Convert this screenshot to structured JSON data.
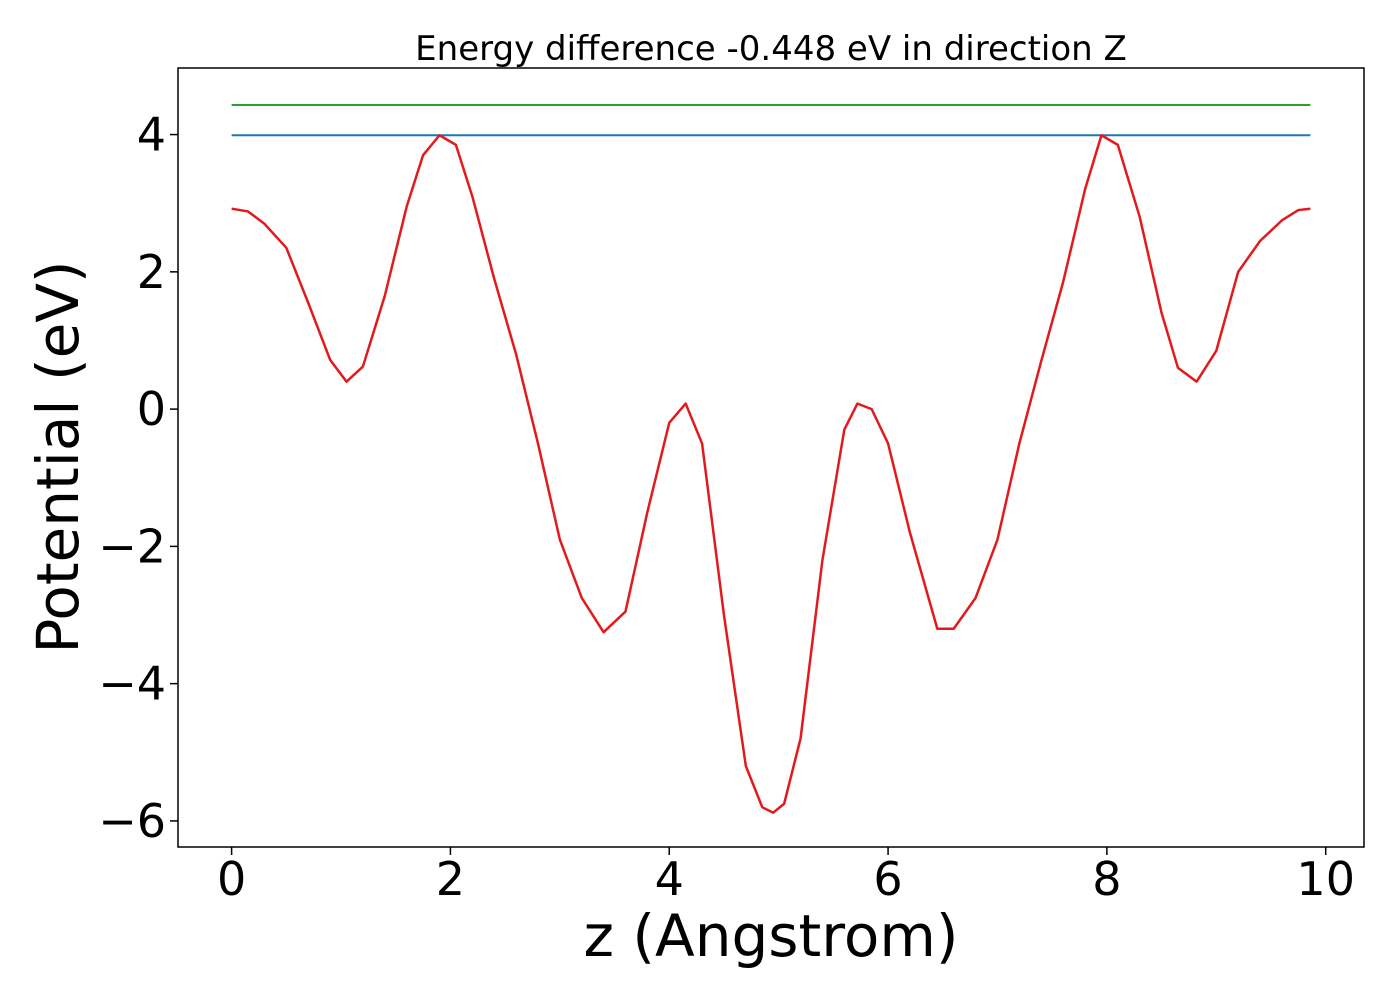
{
  "chart_data": {
    "type": "line",
    "title": "Energy difference -0.448 eV in direction Z",
    "xlabel": "z (Angstrom)",
    "ylabel": "Potential (eV)",
    "xlim": [
      -0.49,
      10.35
    ],
    "ylim": [
      -6.38,
      4.97
    ],
    "x_ticks": [
      0,
      2,
      4,
      6,
      8,
      10
    ],
    "x_tick_labels": [
      "0",
      "2",
      "4",
      "6",
      "8",
      "10"
    ],
    "y_ticks": [
      -6,
      -4,
      -2,
      0,
      2,
      4
    ],
    "y_tick_labels": [
      "−6",
      "−4",
      "−2",
      "0",
      "2",
      "4"
    ],
    "grid": false,
    "series": [
      {
        "color": "#2ca02c",
        "x": [
          0,
          9.86
        ],
        "y": [
          4.43,
          4.43
        ]
      },
      {
        "color": "#1f77b4",
        "x": [
          0,
          9.86
        ],
        "y": [
          3.99,
          3.99
        ]
      },
      {
        "color": "#e31a1c",
        "x": [
          0,
          0.15,
          0.3,
          0.5,
          0.7,
          0.9,
          1.05,
          1.2,
          1.4,
          1.6,
          1.75,
          1.9,
          2.05,
          2.2,
          2.4,
          2.6,
          2.8,
          3.0,
          3.2,
          3.4,
          3.6,
          3.8,
          4.0,
          4.15,
          4.3,
          4.5,
          4.7,
          4.85,
          4.95,
          5.05,
          5.2,
          5.4,
          5.6,
          5.72,
          5.85,
          6.0,
          6.2,
          6.45,
          6.6,
          6.8,
          7.0,
          7.2,
          7.4,
          7.6,
          7.8,
          7.95,
          8.1,
          8.3,
          8.5,
          8.65,
          8.82,
          9.0,
          9.2,
          9.4,
          9.6,
          9.75,
          9.86
        ],
        "y": [
          2.92,
          2.88,
          2.7,
          2.35,
          1.55,
          0.72,
          0.4,
          0.62,
          1.65,
          2.95,
          3.7,
          3.99,
          3.85,
          3.1,
          1.9,
          0.8,
          -0.5,
          -1.9,
          -2.75,
          -3.25,
          -2.95,
          -1.5,
          -0.2,
          0.08,
          -0.5,
          -3.0,
          -5.2,
          -5.8,
          -5.88,
          -5.75,
          -4.8,
          -2.2,
          -0.3,
          0.08,
          0.0,
          -0.5,
          -1.8,
          -3.2,
          -3.2,
          -2.75,
          -1.9,
          -0.5,
          0.7,
          1.85,
          3.2,
          3.99,
          3.85,
          2.8,
          1.4,
          0.6,
          0.4,
          0.85,
          2.0,
          2.45,
          2.75,
          2.9,
          2.92
        ]
      }
    ]
  }
}
